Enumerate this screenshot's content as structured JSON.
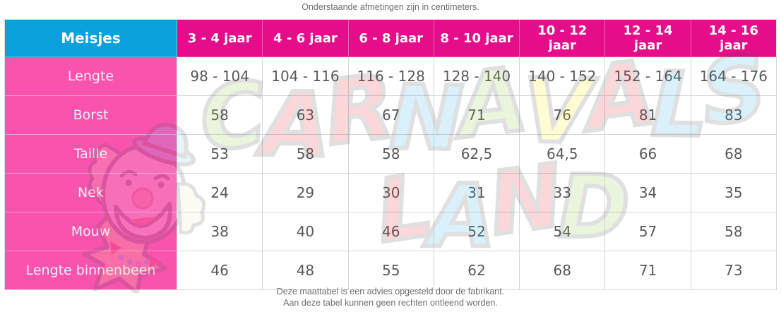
{
  "caption_top": "Onderstaande afmetingen zijn in centimeters.",
  "table": {
    "corner_label": "Meisjes",
    "columns": [
      "3 - 4 jaar",
      "4 - 6 jaar",
      "6 - 8 jaar",
      "8 - 10 jaar",
      "10 - 12\njaar",
      "12 - 14\njaar",
      "14 - 16\njaar"
    ],
    "rows": [
      {
        "label": "Lengte",
        "values": [
          "98 - 104",
          "104 - 116",
          "116 - 128",
          "128 - 140",
          "140 - 152",
          "152 - 164",
          "164 - 176"
        ]
      },
      {
        "label": "Borst",
        "values": [
          "58",
          "63",
          "67",
          "71",
          "76",
          "81",
          "83"
        ]
      },
      {
        "label": "Taille",
        "values": [
          "53",
          "58",
          "58",
          "62,5",
          "64,5",
          "66",
          "68"
        ]
      },
      {
        "label": "Nek",
        "values": [
          "24",
          "29",
          "30",
          "31",
          "33",
          "34",
          "35"
        ]
      },
      {
        "label": "Mouw",
        "values": [
          "38",
          "40",
          "46",
          "52",
          "54",
          "57",
          "58"
        ]
      },
      {
        "label": "Lengte binnenbeen",
        "values": [
          "46",
          "48",
          "55",
          "62",
          "68",
          "71",
          "73"
        ]
      }
    ]
  },
  "watermark": {
    "line1": "CARNAVALS",
    "line2": "LAND",
    "line1_colors": [
      "#8cc63f",
      "#ed1c24",
      "#ed1c24",
      "#29abe2",
      "#8cc63f",
      "#fff200",
      "#ed1c24",
      "#29abe2",
      "#29abe2"
    ],
    "line2_colors": [
      "#ed1c24",
      "#29abe2",
      "#ed1c24",
      "#8cc63f"
    ]
  },
  "footer": {
    "line1": "Deze maattabel is een advies opgesteld door de fabrikant.",
    "line2": "Aan deze tabel kunnen geen rechten ontleend worden."
  },
  "colors": {
    "header_blue": "#09a0dc",
    "header_pink": "#e60d8a",
    "row_label_pink": "#f854ae",
    "cell_text_gray": "#58595b",
    "border_gray": "#d5d6d8"
  }
}
